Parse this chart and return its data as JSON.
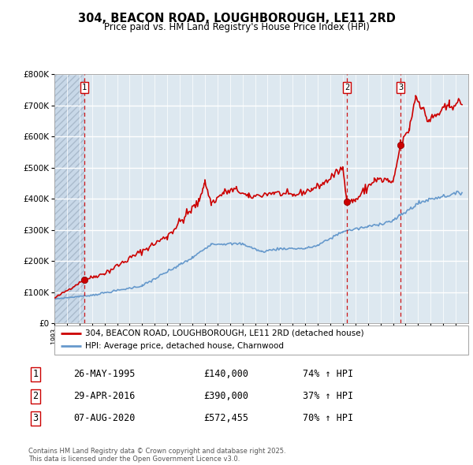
{
  "title1": "304, BEACON ROAD, LOUGHBOROUGH, LE11 2RD",
  "title2": "Price paid vs. HM Land Registry's House Price Index (HPI)",
  "ylim": [
    0,
    800000
  ],
  "yticks": [
    0,
    100000,
    200000,
    300000,
    400000,
    500000,
    600000,
    700000,
    800000
  ],
  "legend_label_red": "304, BEACON ROAD, LOUGHBOROUGH, LE11 2RD (detached house)",
  "legend_label_blue": "HPI: Average price, detached house, Charnwood",
  "footer": "Contains HM Land Registry data © Crown copyright and database right 2025.\nThis data is licensed under the Open Government Licence v3.0.",
  "transaction1_date": "26-MAY-1995",
  "transaction1_price": "£140,000",
  "transaction1_hpi": "74% ↑ HPI",
  "transaction2_date": "29-APR-2016",
  "transaction2_price": "£390,000",
  "transaction2_hpi": "37% ↑ HPI",
  "transaction3_date": "07-AUG-2020",
  "transaction3_price": "£572,455",
  "transaction3_hpi": "70% ↑ HPI",
  "marker1_x": 1995.4,
  "marker1_y": 140000,
  "marker2_x": 2016.33,
  "marker2_y": 390000,
  "marker3_x": 2020.6,
  "marker3_y": 572455,
  "vline1_x": 1995.4,
  "vline2_x": 2016.33,
  "vline3_x": 2020.6,
  "background_color": "#ffffff",
  "plot_bg_color": "#dde8f0",
  "grid_color": "#ffffff",
  "red_line_color": "#cc0000",
  "blue_line_color": "#6699cc",
  "vline_color": "#cc0000",
  "marker_color": "#cc0000",
  "xmin": 1993,
  "xmax": 2026
}
